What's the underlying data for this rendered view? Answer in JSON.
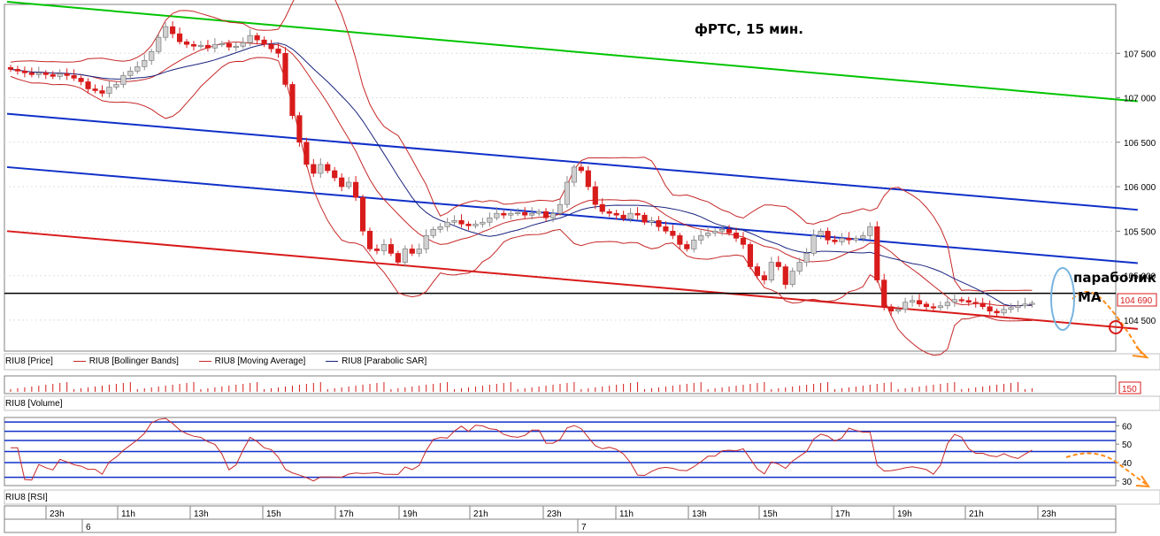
{
  "chart_data": [
    {
      "type": "candlestick",
      "instrument": "RIU8",
      "title": "фРТС, 15 мин.",
      "annotations": [
        "параболик",
        "MA"
      ],
      "last_price_label": "104 690",
      "ylim": [
        104200,
        108000
      ],
      "yticks": [
        "107 500",
        "107 000",
        "106 500",
        "106 000",
        "105 500",
        "105 000",
        "104 500"
      ],
      "xlabels": [
        "23h",
        "11h",
        "13h",
        "15h",
        "17h",
        "19h",
        "21h",
        "23h",
        "11h",
        "13h",
        "15h",
        "17h",
        "19h",
        "21h",
        "23h"
      ],
      "days": [
        "6",
        "7"
      ],
      "legend": [
        "RIU8 [Price]",
        "RIU8 [Bollinger Bands]",
        "RIU8 [Moving Average]",
        "RIU8 [Parabolic SAR]"
      ],
      "horizontal_level": 104800,
      "colors": {
        "up": "#d0d0d0",
        "down": "#d81b1b",
        "bb": "#c62828",
        "sar": "#1a237e",
        "channel_top": "#00c400",
        "channel_mid": "#1030c8",
        "channel_low": "#d81b1b",
        "forecast": "#ff8c1a",
        "level": "#000000"
      },
      "channels": [
        {
          "name": "green",
          "from": [
            0,
            108080
          ],
          "to": [
            160,
            106960
          ]
        },
        {
          "name": "blue-upper",
          "from": [
            0,
            106820
          ],
          "to": [
            160,
            105740
          ]
        },
        {
          "name": "blue-lower",
          "from": [
            0,
            106220
          ],
          "to": [
            160,
            105140
          ]
        },
        {
          "name": "red-lower",
          "from": [
            0,
            105500
          ],
          "to": [
            160,
            104400
          ]
        }
      ],
      "closes": [
        107320,
        107300,
        107280,
        107260,
        107280,
        107260,
        107240,
        107270,
        107250,
        107220,
        107180,
        107100,
        107080,
        107050,
        107120,
        107150,
        107250,
        107300,
        107350,
        107420,
        107520,
        107680,
        107800,
        107720,
        107630,
        107600,
        107580,
        107590,
        107560,
        107600,
        107610,
        107570,
        107580,
        107620,
        107700,
        107650,
        107600,
        107550,
        107500,
        107150,
        106800,
        106500,
        106250,
        106150,
        106250,
        106180,
        106100,
        106000,
        106050,
        105880,
        105500,
        105300,
        105280,
        105350,
        105250,
        105150,
        105300,
        105250,
        105300,
        105450,
        105520,
        105550,
        105600,
        105620,
        105580,
        105560,
        105580,
        105600,
        105650,
        105700,
        105680,
        105700,
        105710,
        105680,
        105700,
        105720,
        105650,
        105700,
        105800,
        106050,
        106220,
        106180,
        106000,
        105800,
        105720,
        105700,
        105680,
        105640,
        105700,
        105680,
        105600,
        105620,
        105550,
        105500,
        105450,
        105350,
        105300,
        105400,
        105450,
        105480,
        105500,
        105520,
        105480,
        105420,
        105350,
        105100,
        105000,
        104950,
        105150,
        105100,
        104900,
        105050,
        105150,
        105250,
        105450,
        105500,
        105400,
        105380,
        105420,
        105400,
        105420,
        105450,
        105550,
        104950,
        104650,
        104600,
        104620,
        104700,
        104720,
        104680,
        104650,
        104640,
        104660,
        104700,
        104730,
        104720,
        104700,
        104690,
        104650,
        104600,
        104580,
        104620,
        104640,
        104660,
        104680,
        104690
      ],
      "volume_max": "150",
      "rsi": {
        "levels": [
          62,
          57,
          52,
          46,
          40,
          32
        ],
        "yticks": [
          "60",
          "50",
          "40",
          "30"
        ]
      }
    }
  ]
}
